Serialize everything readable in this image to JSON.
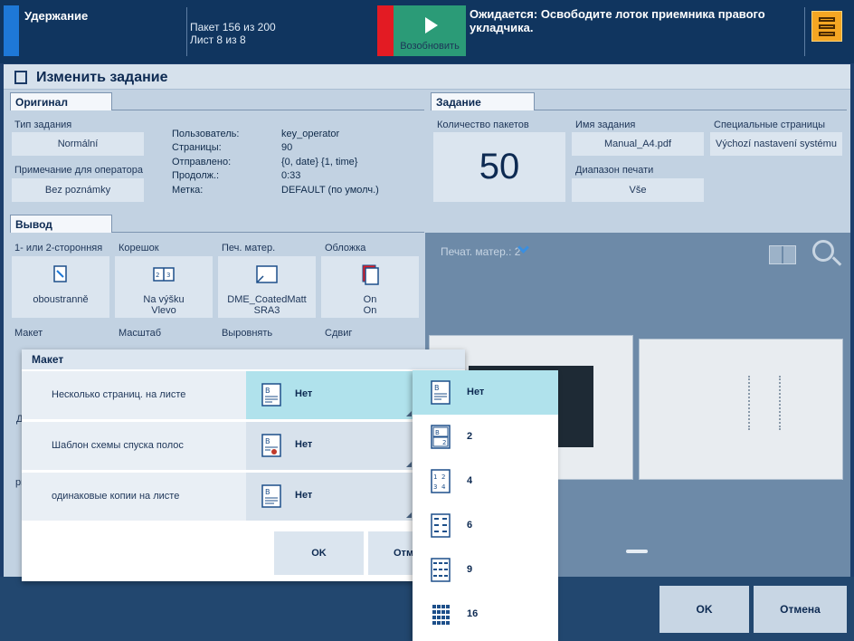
{
  "status_bar": {
    "state": "Удержание",
    "batch_line": "Пакет 156 из 200",
    "sheet_line": "Лист 8 из 8",
    "resume_label": "Возобновить",
    "message": "Ожидается: Освободите лоток приемника правого укладчика.",
    "accent_color": "#1e78d7",
    "alert_color": "#e31b23",
    "resume_color": "#2b9b77"
  },
  "dialog": {
    "title": "Изменить задание",
    "original": {
      "tab": "Оригинал",
      "job_type_label": "Тип задания",
      "job_type_value": "Normální",
      "operator_note_label": "Примечание для оператора",
      "operator_note_value": "Bez poznámky",
      "info": [
        {
          "key": "Пользователь:",
          "value": "key_operator"
        },
        {
          "key": "Страницы:",
          "value": "90"
        },
        {
          "key": "Отправлено:",
          "value": "{0, date} {1, time}"
        },
        {
          "key": "Продолж.:",
          "value": "0:33"
        },
        {
          "key": "Метка:",
          "value": "DEFAULT (по умолч.)"
        }
      ]
    },
    "job": {
      "tab": "Задание",
      "batches_label": "Количество пакетов",
      "batches_value": "50",
      "name_label": "Имя задания",
      "name_value": "Manual_A4.pdf",
      "range_label": "Диапазон печати",
      "range_value": "Vše",
      "special_label": "Специальные страницы",
      "special_value": "Výchozí nastavení systému"
    },
    "output": {
      "tab": "Вывод",
      "tiles": [
        {
          "label": "1- или 2-сторонняя",
          "line1": "oboustranně",
          "line2": ""
        },
        {
          "label": "Корешок",
          "line1": "Na výšku",
          "line2": "Vlevo"
        },
        {
          "label": "Печ. матер.",
          "line1": "DME_CoatedMatt",
          "line2": "SRA3"
        },
        {
          "label": "Обложка",
          "line1": "On",
          "line2": "On"
        }
      ],
      "row2_labels": [
        "Макет",
        "Масштаб",
        "Выровнять",
        "Сдвиг"
      ],
      "left_partial": [
        "Д",
        "pr"
      ]
    },
    "preview": {
      "media_selector": "Печат. матер.: 2",
      "icons": [
        "book-view-icon",
        "zoom-icon",
        "chevron-down-icon"
      ]
    },
    "ok": "OK",
    "cancel": "Отмена"
  },
  "layout_popup": {
    "title": "Макет",
    "rows": [
      {
        "label": "Несколько страниц. на листе",
        "value": "Нет"
      },
      {
        "label": "Шаблон схемы спуска полос",
        "value": "Нет"
      },
      {
        "label": "одинаковые копии на листе",
        "value": "Нет"
      }
    ],
    "ok": "OK",
    "cancel_partial": "Отм"
  },
  "dropdown": {
    "options": [
      "Нет",
      "2",
      "4",
      "6",
      "9",
      "16"
    ],
    "selected": "Нет"
  }
}
